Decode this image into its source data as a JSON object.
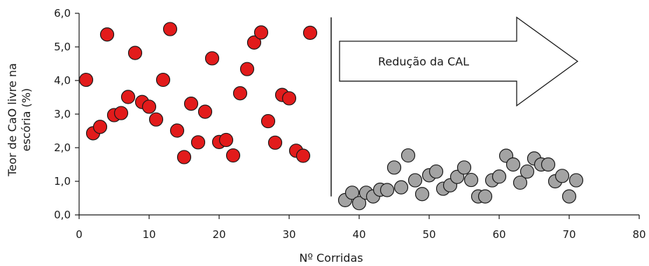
{
  "chart_data": {
    "type": "scatter",
    "xlabel": "Nº Corridas",
    "ylabel_lines": [
      "Teor de CaO livre na",
      "escória (%)"
    ],
    "xlim": [
      0,
      80
    ],
    "ylim": [
      0,
      6
    ],
    "x_ticks": [
      0,
      10,
      20,
      30,
      40,
      50,
      60,
      70,
      80
    ],
    "y_ticks": [
      "0,0",
      "1,0",
      "2,0",
      "3,0",
      "4,0",
      "5,0",
      "6,0"
    ],
    "divider_x": 36,
    "annotation": "Redução da CAL",
    "colors": {
      "before": "#e21b1b",
      "after": "#a3a3a3",
      "outline": "#1a1a1a"
    },
    "series": [
      {
        "color": "#e21b1b",
        "points": [
          [
            1,
            4.02
          ],
          [
            2,
            2.43
          ],
          [
            3,
            2.62
          ],
          [
            4,
            5.37
          ],
          [
            5,
            2.97
          ],
          [
            6,
            3.03
          ],
          [
            7,
            3.51
          ],
          [
            8,
            4.82
          ],
          [
            9,
            3.36
          ],
          [
            10,
            3.22
          ],
          [
            11,
            2.84
          ],
          [
            12,
            4.02
          ],
          [
            13,
            5.53
          ],
          [
            14,
            2.51
          ],
          [
            15,
            1.72
          ],
          [
            16,
            3.31
          ],
          [
            17,
            2.16
          ],
          [
            18,
            3.07
          ],
          [
            19,
            4.66
          ],
          [
            20,
            2.17
          ],
          [
            21,
            2.23
          ],
          [
            22,
            1.77
          ],
          [
            23,
            3.62
          ],
          [
            24,
            4.34
          ],
          [
            25,
            5.13
          ],
          [
            26,
            5.43
          ],
          [
            27,
            2.79
          ],
          [
            28,
            2.15
          ],
          [
            29,
            3.57
          ],
          [
            30,
            3.47
          ],
          [
            31,
            1.91
          ],
          [
            32,
            1.76
          ],
          [
            33,
            5.42
          ]
        ]
      },
      {
        "color": "#a3a3a3",
        "points": [
          [
            38,
            0.44
          ],
          [
            39,
            0.66
          ],
          [
            40,
            0.35
          ],
          [
            41,
            0.66
          ],
          [
            42,
            0.55
          ],
          [
            43,
            0.75
          ],
          [
            44,
            0.74
          ],
          [
            45,
            1.41
          ],
          [
            46,
            0.82
          ],
          [
            47,
            1.77
          ],
          [
            48,
            1.03
          ],
          [
            49,
            0.62
          ],
          [
            50,
            1.18
          ],
          [
            51,
            1.29
          ],
          [
            52,
            0.78
          ],
          [
            53,
            0.88
          ],
          [
            54,
            1.13
          ],
          [
            55,
            1.41
          ],
          [
            56,
            1.04
          ],
          [
            57,
            0.55
          ],
          [
            58,
            0.55
          ],
          [
            59,
            1.03
          ],
          [
            60,
            1.14
          ],
          [
            61,
            1.76
          ],
          [
            62,
            1.5
          ],
          [
            63,
            0.96
          ],
          [
            64,
            1.29
          ],
          [
            65,
            1.68
          ],
          [
            66,
            1.5
          ],
          [
            67,
            1.5
          ],
          [
            68,
            1.0
          ],
          [
            69,
            1.16
          ],
          [
            70,
            0.55
          ],
          [
            71,
            1.03
          ]
        ]
      }
    ]
  }
}
